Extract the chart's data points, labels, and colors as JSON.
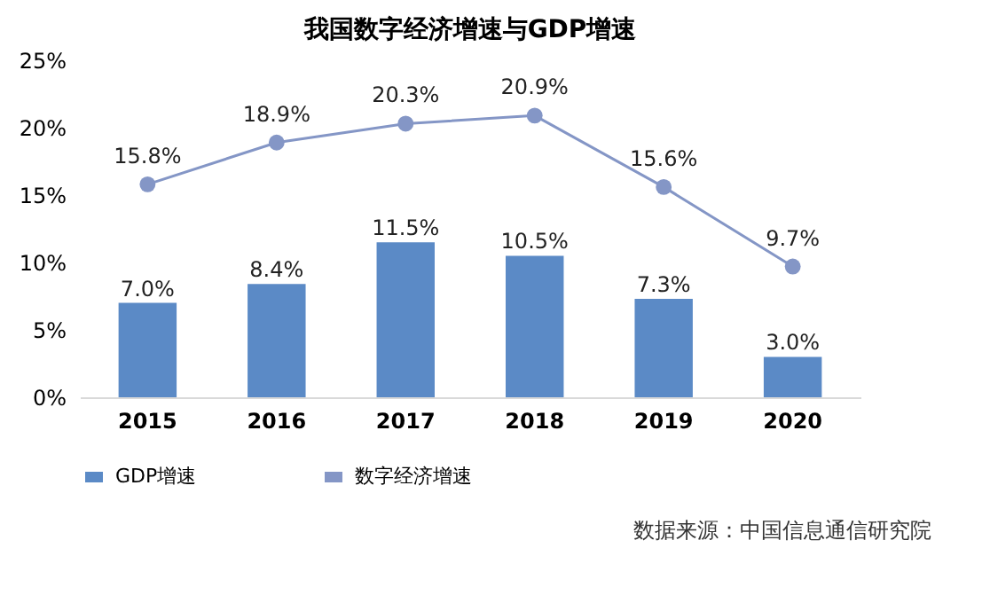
{
  "chart_data": {
    "type": "bar",
    "title": "我国数字经济增速与GDP增速",
    "categories": [
      "2015",
      "2016",
      "2017",
      "2018",
      "2019",
      "2020"
    ],
    "series": [
      {
        "name": "GDP增速",
        "color": "#5b8ac6",
        "values": [
          7.0,
          8.4,
          11.5,
          10.5,
          7.3,
          3.0
        ],
        "value_labels": [
          "7.0%",
          "8.4%",
          "11.5%",
          "10.5%",
          "7.3%",
          "3.0%"
        ]
      },
      {
        "name": "数字经济增速",
        "type": "line",
        "color": "#8496c6",
        "values": [
          15.8,
          18.9,
          20.3,
          20.9,
          15.6,
          9.7
        ],
        "value_labels": [
          "15.8%",
          "18.9%",
          "20.3%",
          "20.9%",
          "15.6%",
          "9.7%"
        ]
      }
    ],
    "ylim": [
      0,
      25
    ],
    "yticks": [
      {
        "value": 0,
        "label": "0%"
      },
      {
        "value": 5,
        "label": "5%"
      },
      {
        "value": 10,
        "label": "10%"
      },
      {
        "value": 15,
        "label": "15%"
      },
      {
        "value": 20,
        "label": "20%"
      },
      {
        "value": 25,
        "label": "25%"
      }
    ],
    "grid": false,
    "legend": "bottom",
    "marker": "circle",
    "line_style": "solid",
    "annotations": [
      "数据来源：中国信息通信研究院"
    ]
  }
}
